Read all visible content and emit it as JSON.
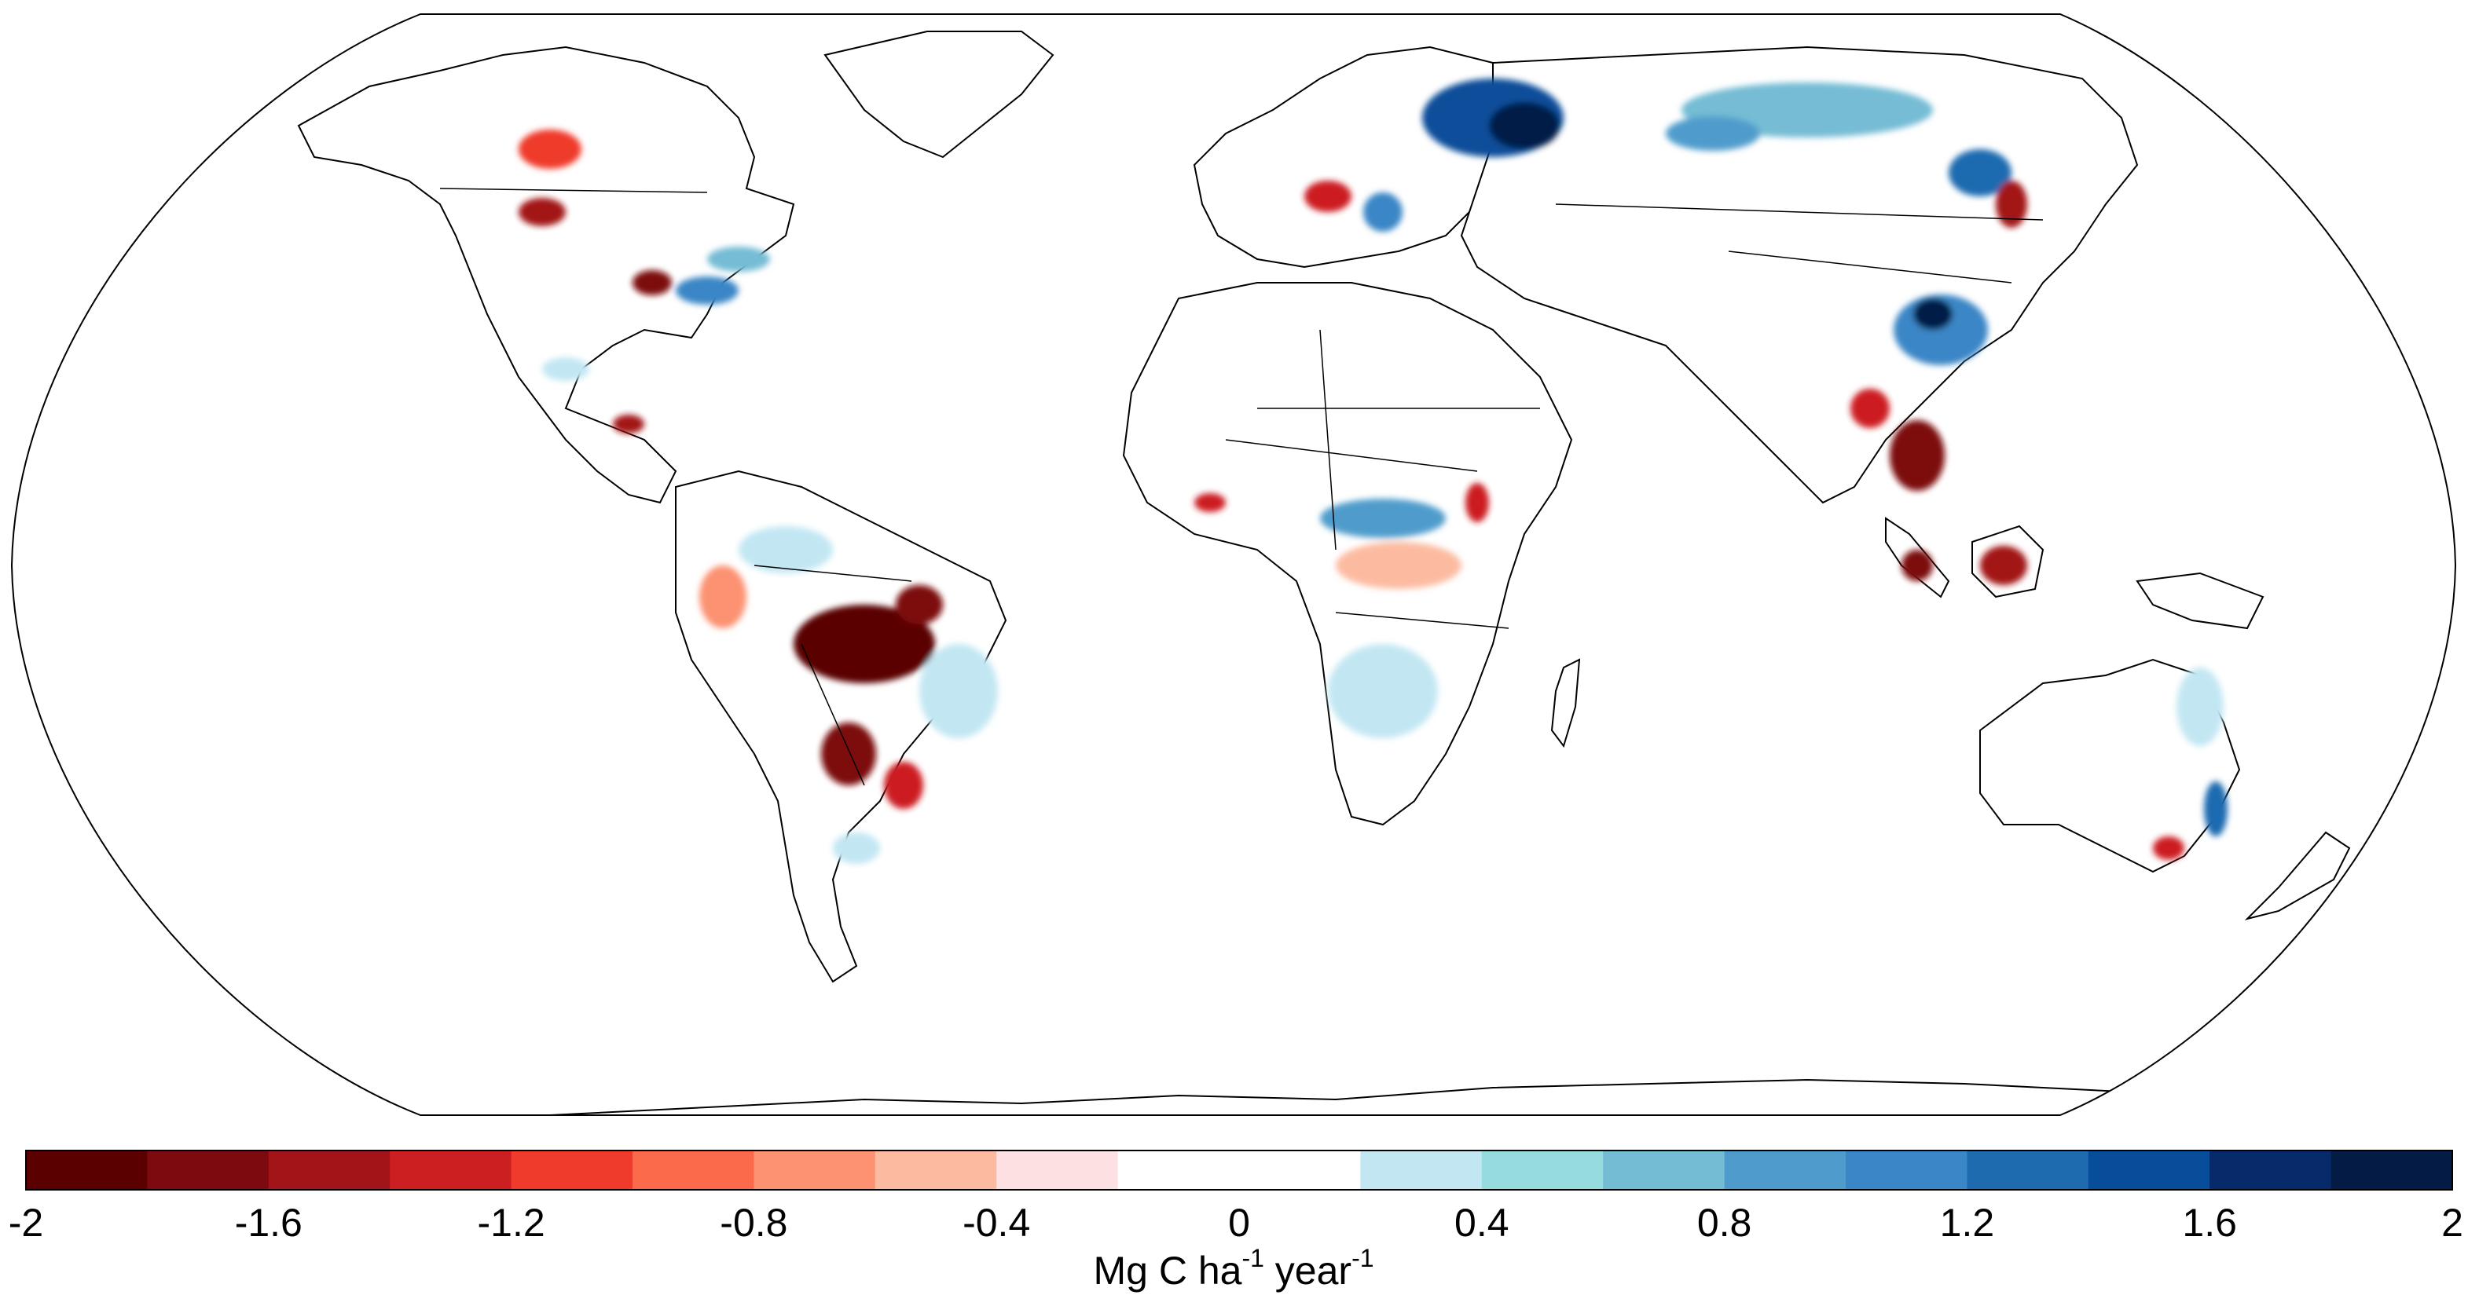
{
  "colorbar": {
    "bins": [
      "#5a0000",
      "#7d0a0f",
      "#a31419",
      "#cc1f22",
      "#ef3b2c",
      "#fb6a4a",
      "#fc9272",
      "#fcbba1",
      "#fde0e2",
      "#ffffff",
      "#ffffff",
      "#c2e7f3",
      "#96dcdf",
      "#74bcd4",
      "#4f9ccc",
      "#3b86c6",
      "#1f6bb0",
      "#084d9a",
      "#072a6b",
      "#041b46"
    ],
    "range": [
      -2,
      2
    ],
    "ticks": [
      {
        "value": -2,
        "label": "-2"
      },
      {
        "value": -1.6,
        "label": "-1.6"
      },
      {
        "value": -1.2,
        "label": "-1.2"
      },
      {
        "value": -0.8,
        "label": "-0.8"
      },
      {
        "value": -0.4,
        "label": "-0.4"
      },
      {
        "value": 0,
        "label": "0"
      },
      {
        "value": 0.4,
        "label": "0.4"
      },
      {
        "value": 0.8,
        "label": "0.8"
      },
      {
        "value": 1.2,
        "label": "1.2"
      },
      {
        "value": 1.6,
        "label": "1.6"
      },
      {
        "value": 2,
        "label": "2"
      }
    ],
    "units": {
      "base": "Mg C ha",
      "exp1": "-1",
      "mid": " year",
      "exp2": "-1"
    }
  }
}
